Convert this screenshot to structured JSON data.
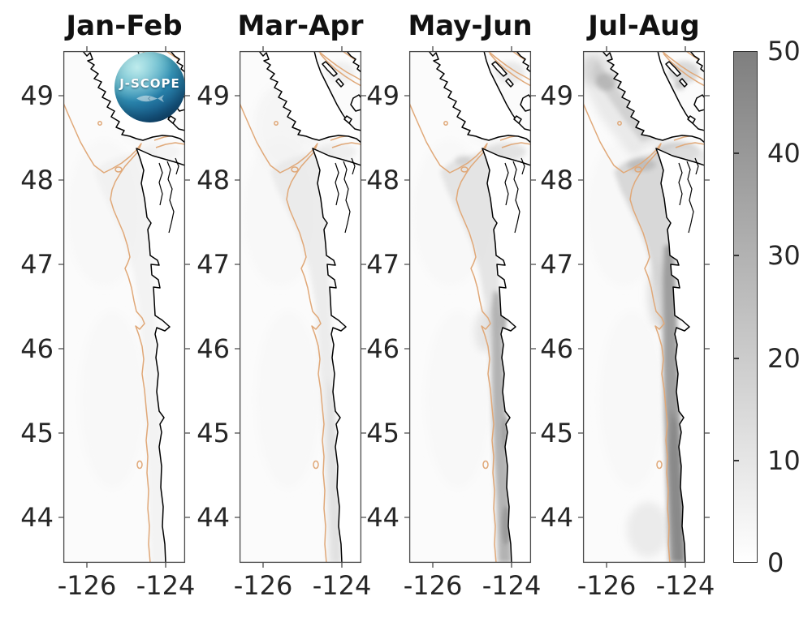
{
  "colors": {
    "background": "#ffffff",
    "sea": "#fbfbfb",
    "land": "#ffffff",
    "coastline": "#000000",
    "shelf-contour": "#e0a878",
    "axis": "#4a4a4a",
    "tick-label": "#262626",
    "title": "#111111",
    "colorbar-top": "#7f7f7f",
    "colorbar-bottom": "#ffffff"
  },
  "figure": {
    "panels": [
      {
        "title": "Jan-Feb"
      },
      {
        "title": "Mar-Apr"
      },
      {
        "title": "May-Jun"
      },
      {
        "title": "Jul-Aug"
      }
    ],
    "y_tick_labels": [
      "49",
      "48",
      "47",
      "46",
      "45",
      "44"
    ],
    "x_tick_labels": [
      "-126",
      "-124"
    ],
    "colorbar_tick_labels": [
      "50",
      "40",
      "30",
      "20",
      "10",
      "0"
    ],
    "logo_text": "J-SCOPE"
  },
  "chart_data": {
    "type": "heatmap",
    "subtype": "geographic map series, 4 bimonthly panels, Pacific Northwest coast (Vancouver Island / Washington / Oregon)",
    "panel_titles": [
      "Jan-Feb",
      "Mar-Apr",
      "May-Jun",
      "Jul-Aug"
    ],
    "x": {
      "ticks": [
        -126,
        -124
      ],
      "range_est": [
        -126.6,
        -123.5
      ],
      "units": "degrees longitude"
    },
    "y": {
      "ticks": [
        49,
        48,
        47,
        46,
        45,
        44
      ],
      "range_est": [
        43.5,
        49.5
      ],
      "units": "degrees latitude"
    },
    "colorbar": {
      "min": 0,
      "max": 50,
      "ticks": [
        0,
        10,
        20,
        30,
        40,
        50
      ],
      "colormap": "white (0) to dark gray (50)",
      "position": "right"
    },
    "overlays": [
      "black coastline outline",
      "tan shelf-break depth contour following the coast",
      "small tan seamount and bank contour rings offshore"
    ],
    "panel_values_est": [
      {
        "panel": "Jan-Feb",
        "coastal_shelf": "0-5",
        "offshore": "0",
        "strait_of_juan_de_fuca": "0-5",
        "pattern": "nearly white everywhere, faint shelf tint"
      },
      {
        "panel": "Mar-Apr",
        "coastal_shelf": "0-8",
        "offshore": "0-3",
        "strait_of_juan_de_fuca": "0-5",
        "pattern": "faint light-gray wash on shelf and strait entrance"
      },
      {
        "panel": "May-Jun",
        "coastal_shelf": "10-25 along coast south of 46N",
        "offshore": "0-5",
        "strait_of_juan_de_fuca": "5-10",
        "pattern": "gray band hugging WA/OR coast inside shelf contour, darker streaks near 45N-44N"
      },
      {
        "panel": "Jul-Aug",
        "coastal_shelf": "20-35 along entire coast, widest south of 45N",
        "offshore": "0-8",
        "strait_of_juan_de_fuca": "10-20",
        "vancouver_island_shelf": "10-20",
        "pattern": "darkest: continuous gray band on shelf, dark patches off strait entrance and along Vancouver Island"
      }
    ],
    "logo": "circular J-SCOPE ocean-photo logo overlapping top of Jan-Feb panel"
  }
}
